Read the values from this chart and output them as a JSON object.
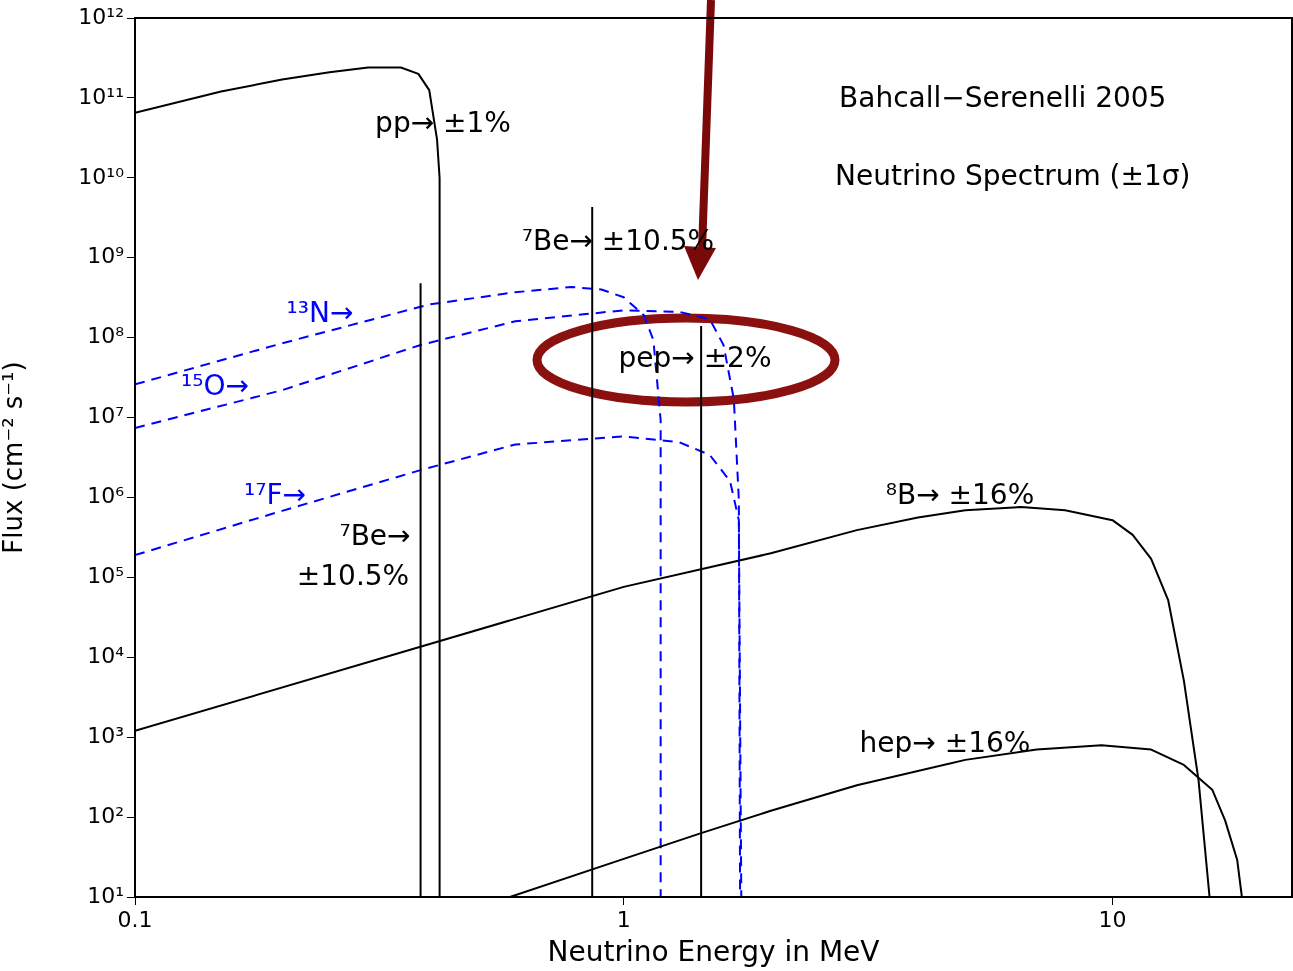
{
  "chart_data": {
    "type": "line",
    "title": "Bahcall−Serenelli 2005",
    "subtitle": "Neutrino Spectrum (±1σ)",
    "xlabel": "Neutrino Energy in MeV",
    "ylabel": "Flux (cm⁻² s⁻¹)",
    "log": "xy",
    "grid": false,
    "xlim": [
      0.1,
      23.3
    ],
    "xticks": [
      0.1,
      1,
      10
    ],
    "ylim": [
      10,
      1000000000000.0
    ],
    "yticks": [
      {
        "value": 10,
        "label": "10¹"
      },
      {
        "value": 100,
        "label": "10²"
      },
      {
        "value": 1000,
        "label": "10³"
      },
      {
        "value": 10000,
        "label": "10⁴"
      },
      {
        "value": 100000,
        "label": "10⁵"
      },
      {
        "value": 1000000,
        "label": "10⁶"
      },
      {
        "value": 10000000,
        "label": "10⁷"
      },
      {
        "value": 100000000,
        "label": "10⁸"
      },
      {
        "value": 1000000000,
        "label": "10⁹"
      },
      {
        "value": 10000000000,
        "label": "10¹⁰"
      },
      {
        "value": 100000000000,
        "label": "10¹¹"
      },
      {
        "value": 1000000000000,
        "label": "10¹²"
      }
    ],
    "series": [
      {
        "color": "#000000",
        "line_style": "solid",
        "x": [
          0.1,
          0.15,
          0.2,
          0.25,
          0.3,
          0.35,
          0.38,
          0.4,
          0.415,
          0.42,
          0.42
        ],
        "values": [
          65000000000.0,
          120000000000.0,
          170000000000.0,
          210000000000.0,
          240000000000.0,
          240000000000.0,
          200000000000.0,
          125000000000.0,
          30000000000.0,
          10000000000.0,
          10
        ]
      },
      {
        "color": "#000000",
        "line_style": "solid",
        "x": [
          0.384,
          0.384
        ],
        "values": [
          10,
          480000000.0
        ]
      },
      {
        "color": "#000000",
        "line_style": "solid",
        "x": [
          0.862,
          0.862
        ],
        "values": [
          10,
          4300000000.0
        ]
      },
      {
        "color": "#000000",
        "line_style": "solid",
        "x": [
          1.44,
          1.44
        ],
        "values": [
          10,
          140000000.0
        ]
      },
      {
        "color": "#000000",
        "line_style": "solid",
        "x": [
          0.1,
          1,
          2,
          3,
          4,
          5,
          6.5,
          8,
          10,
          11,
          12,
          13,
          14,
          15,
          15.8
        ],
        "values": [
          1200,
          76000,
          200000,
          390000,
          560000,
          690000,
          760000,
          690000,
          520000,
          340000,
          170000,
          52000,
          5100,
          290,
          10
        ]
      },
      {
        "color": "#000000",
        "line_style": "solid",
        "x": [
          0.585,
          1,
          1.44,
          2,
          3,
          5,
          7,
          9.5,
          12,
          14,
          16,
          17,
          18,
          18.4
        ],
        "values": [
          10,
          30,
          63,
          120,
          250,
          520,
          700,
          790,
          700,
          450,
          220,
          91,
          29,
          10
        ]
      },
      {
        "color": "#0000ff",
        "line_style": "dashed",
        "x": [
          0.1,
          0.2,
          0.4,
          0.6,
          0.78,
          0.9,
          1.0,
          1.1,
          1.15,
          1.19,
          1.19
        ],
        "values": [
          26000000.0,
          85000000.0,
          260000000.0,
          370000000.0,
          430000000.0,
          400000000.0,
          320000000.0,
          190000000.0,
          93000000.0,
          9300000.0,
          10
        ]
      },
      {
        "color": "#0000ff",
        "line_style": "dashed",
        "x": [
          0.1,
          0.2,
          0.384,
          0.6,
          1.0,
          1.3,
          1.5,
          1.6,
          1.68,
          1.72,
          1.73
        ],
        "values": [
          7400000.0,
          22000000.0,
          81000000.0,
          160000000.0,
          220000000.0,
          210000000.0,
          170000000.0,
          81000000.0,
          17000000.0,
          940000.0,
          10
        ]
      },
      {
        "color": "#0000ff",
        "line_style": "dashed",
        "x": [
          0.1,
          0.2,
          0.384,
          0.6,
          1.0,
          1.3,
          1.5,
          1.65,
          1.72,
          1.74
        ],
        "values": [
          190000.0,
          680000.0,
          2200000.0,
          4600000.0,
          5800000.0,
          4900000.0,
          3400000.0,
          1600000.0,
          520000.0,
          10
        ]
      }
    ],
    "annotations": [
      "pp→ ±1%",
      "⁷Be→ ±10.5%",
      "¹³N→",
      "¹⁵O→",
      "¹⁷F→",
      "⁷Be→",
      "±10.5%",
      "pep→ ±2%",
      "⁸B→ ±16%",
      "hep→ ±16%"
    ]
  }
}
